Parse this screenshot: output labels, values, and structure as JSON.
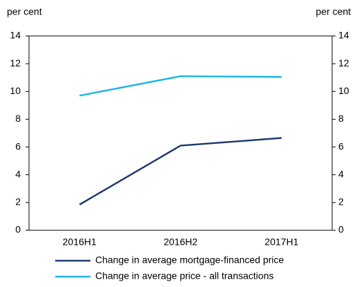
{
  "chart_data": {
    "type": "line",
    "categories": [
      "2016H1",
      "2016H2",
      "2017H1"
    ],
    "series": [
      {
        "name": "Change in average mortgage-financed price",
        "color": "#1f3a6e",
        "values": [
          1.85,
          6.1,
          6.65
        ]
      },
      {
        "name": "Change in average price - all transactions",
        "color": "#1fb4e8",
        "values": [
          9.7,
          11.1,
          11.05
        ]
      }
    ],
    "ylabel": "per cent",
    "y2label": "per cent",
    "ylim": [
      0,
      14
    ],
    "yticks": [
      0,
      2,
      4,
      6,
      8,
      10,
      12,
      14
    ],
    "y2lim": [
      0,
      14
    ],
    "y2ticks": [
      0,
      2,
      4,
      6,
      8,
      10,
      12,
      14
    ],
    "grid": false,
    "legend": "bottom"
  }
}
